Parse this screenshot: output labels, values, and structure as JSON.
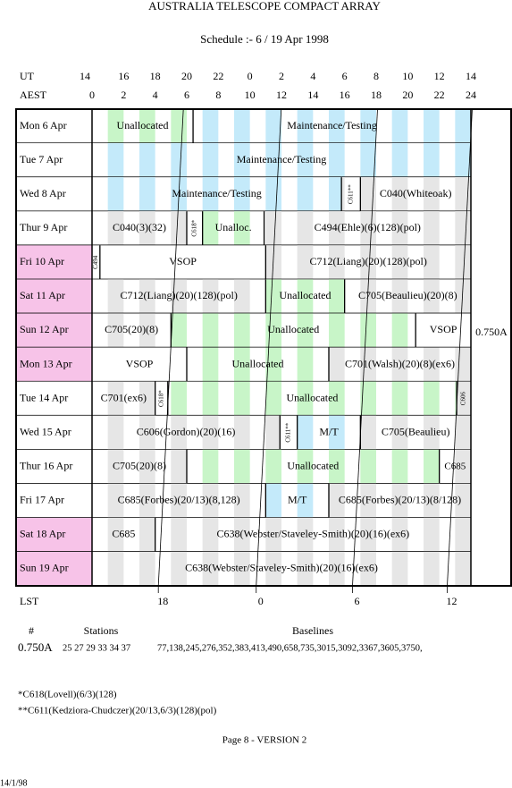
{
  "header": {
    "title": "AUSTRALIA TELESCOPE COMPACT ARRAY",
    "subtitle": "Schedule :- 6 / 19 Apr 1998"
  },
  "schedule": {
    "ut_title": "UT",
    "aest_title": "AEST",
    "lst_title": "LST",
    "ut_labels": [
      14,
      16,
      18,
      20,
      22,
      0,
      2,
      4,
      6,
      8,
      10,
      12,
      14
    ],
    "aest_labels": [
      0,
      2,
      4,
      6,
      8,
      10,
      12,
      14,
      16,
      18,
      20,
      22,
      24
    ],
    "lst": {
      "labels": [
        18,
        0,
        6,
        12
      ],
      "aest": [
        4.2,
        10.4,
        16.5,
        22.5
      ]
    },
    "config": "0.750A",
    "days": [
      {
        "label": "Mon 6 Apr",
        "color": "#ffffff",
        "blocks": [
          {
            "text": "Unallocated",
            "start": 0,
            "end": 6.4,
            "color": "#c8f5c8"
          },
          {
            "text": "Maintenance/Testing",
            "start": 6.4,
            "end": 24,
            "color": "#c4eafa"
          }
        ]
      },
      {
        "label": "Tue 7 Apr",
        "color": "#ffffff",
        "blocks": [
          {
            "text": "Maintenance/Testing",
            "start": 0,
            "end": 24,
            "color": "#c4eafa"
          }
        ]
      },
      {
        "label": "Wed 8 Apr",
        "color": "#ffffff",
        "blocks": [
          {
            "text": "Maintenance/Testing",
            "start": 0,
            "end": 15.8,
            "color": "#c4eafa"
          },
          {
            "text": "C611**",
            "start": 15.8,
            "end": 17,
            "color": "#e6e6e6"
          },
          {
            "text": "C040(Whiteoak)",
            "start": 17,
            "end": 24,
            "color": "#e6e6e6"
          }
        ]
      },
      {
        "label": "Thur 9 Apr",
        "color": "#ffffff",
        "blocks": [
          {
            "text": "C040(3)(32)",
            "start": 0,
            "end": 6,
            "color": "#e6e6e6"
          },
          {
            "text": "C618*",
            "start": 6,
            "end": 7,
            "color": "#e6e6e6"
          },
          {
            "text": "Unalloc.",
            "start": 7,
            "end": 10.9,
            "color": "#c8f5c8"
          },
          {
            "text": "C494(Ehle)(6)(128)(pol)",
            "start": 10.9,
            "end": 24,
            "color": "#e6e6e6"
          }
        ]
      },
      {
        "label": "Fri 10 Apr",
        "color": "#f7c3e8",
        "blocks": [
          {
            "text": "C494",
            "start": 0,
            "end": 0.5,
            "color": "#e6e6e6"
          },
          {
            "text": "VSOP",
            "start": 0.5,
            "end": 11,
            "color": "#ffffff"
          },
          {
            "text": "C712(Liang)(20)(128)(pol)",
            "start": 11,
            "end": 24,
            "color": "#e6e6e6"
          }
        ]
      },
      {
        "label": "Sat 11 Apr",
        "color": "#f7c3e8",
        "blocks": [
          {
            "text": "C712(Liang)(20)(128)(pol)",
            "start": 0,
            "end": 11,
            "color": "#e6e6e6"
          },
          {
            "text": "Unallocated",
            "start": 11,
            "end": 16,
            "color": "#c8f5c8"
          },
          {
            "text": "C705(Beaulieu)(20)(8)",
            "start": 16,
            "end": 24,
            "color": "#e6e6e6"
          }
        ]
      },
      {
        "label": "Sun 12 Apr",
        "color": "#f7c3e8",
        "blocks": [
          {
            "text": "C705(20)(8)",
            "start": 0,
            "end": 5,
            "color": "#e6e6e6"
          },
          {
            "text": "Unallocated",
            "start": 5,
            "end": 20.5,
            "color": "#c8f5c8"
          },
          {
            "text": "VSOP",
            "start": 20.5,
            "end": 24,
            "color": "#ffffff"
          }
        ]
      },
      {
        "label": "Mon 13 Apr",
        "color": "#f7c3e8",
        "blocks": [
          {
            "text": "VSOP",
            "start": 0,
            "end": 6,
            "color": "#ffffff"
          },
          {
            "text": "Unallocated",
            "start": 6,
            "end": 15,
            "color": "#c8f5c8"
          },
          {
            "text": "C701(Walsh)(20)(8)(ex6)",
            "start": 15,
            "end": 24,
            "color": "#e6e6e6"
          }
        ]
      },
      {
        "label": "Tue 14 Apr",
        "color": "#ffffff",
        "blocks": [
          {
            "text": "C701(ex6)",
            "start": 0,
            "end": 4,
            "color": "#e6e6e6"
          },
          {
            "text": "C618*",
            "start": 4,
            "end": 4.8,
            "color": "#e6e6e6"
          },
          {
            "text": "Unallocated",
            "start": 4.8,
            "end": 23.1,
            "color": "#c8f5c8"
          },
          {
            "text": "C606",
            "start": 23.1,
            "end": 24,
            "color": "#e6e6e6"
          }
        ]
      },
      {
        "label": "Wed 15 Apr",
        "color": "#ffffff",
        "blocks": [
          {
            "text": "C606(Gordon)(20)(16)",
            "start": 0,
            "end": 11.9,
            "color": "#e6e6e6"
          },
          {
            "text": "C611**",
            "start": 11.9,
            "end": 13,
            "color": "#e6e6e6"
          },
          {
            "text": "M/T",
            "start": 13,
            "end": 17,
            "color": "#c4eafa"
          },
          {
            "text": "C705(Beaulieu)",
            "start": 17,
            "end": 24,
            "color": "#e6e6e6"
          }
        ]
      },
      {
        "label": "Thur 16 Apr",
        "color": "#ffffff",
        "blocks": [
          {
            "text": "C705(20)(8)",
            "start": 0,
            "end": 6,
            "color": "#e6e6e6"
          },
          {
            "text": "Unallocated",
            "start": 6,
            "end": 22,
            "color": "#c8f5c8"
          },
          {
            "text": "C685",
            "start": 22,
            "end": 24,
            "color": "#e6e6e6"
          }
        ]
      },
      {
        "label": "Fri 17 Apr",
        "color": "#ffffff",
        "blocks": [
          {
            "text": "C685(Forbes)(20/13)(8,128)",
            "start": 0,
            "end": 11,
            "color": "#e6e6e6"
          },
          {
            "text": "M/T",
            "start": 11,
            "end": 15,
            "color": "#c4eafa"
          },
          {
            "text": "C685(Forbes)(20/13)(8/128)",
            "start": 15,
            "end": 24,
            "color": "#e6e6e6"
          }
        ]
      },
      {
        "label": "Sat 18 Apr",
        "color": "#f7c3e8",
        "blocks": [
          {
            "text": "C685",
            "start": 0,
            "end": 4,
            "color": "#e6e6e6"
          },
          {
            "text": "C638(Webster/Staveley-Smith)(20)(16)(ex6)",
            "start": 4,
            "end": 24,
            "color": "#e6e6e6"
          }
        ]
      },
      {
        "label": "Sun 19 Apr",
        "color": "#f7c3e8",
        "blocks": [
          {
            "text": "C638(Webster/Staveley-Smith)(20)(16)(ex6)",
            "start": 0,
            "end": 24,
            "color": "#e6e6e6"
          }
        ]
      }
    ]
  },
  "footer": {
    "headers": [
      "#",
      "Stations",
      "Baselines"
    ],
    "row": [
      "0.750A",
      "25 27 29 33 34 37",
      "77,138,245,276,352,383,413,490,658,735,3015,3092,3367,3605,3750,"
    ]
  },
  "notes": [
    "*C618(Lovell)(6/3)(128)",
    "**C611(Kedziora-Chudczer)(20/13,6/3)(128)(pol)"
  ],
  "page": "Page 8 - VERSION 2",
  "date": "14/1/98"
}
